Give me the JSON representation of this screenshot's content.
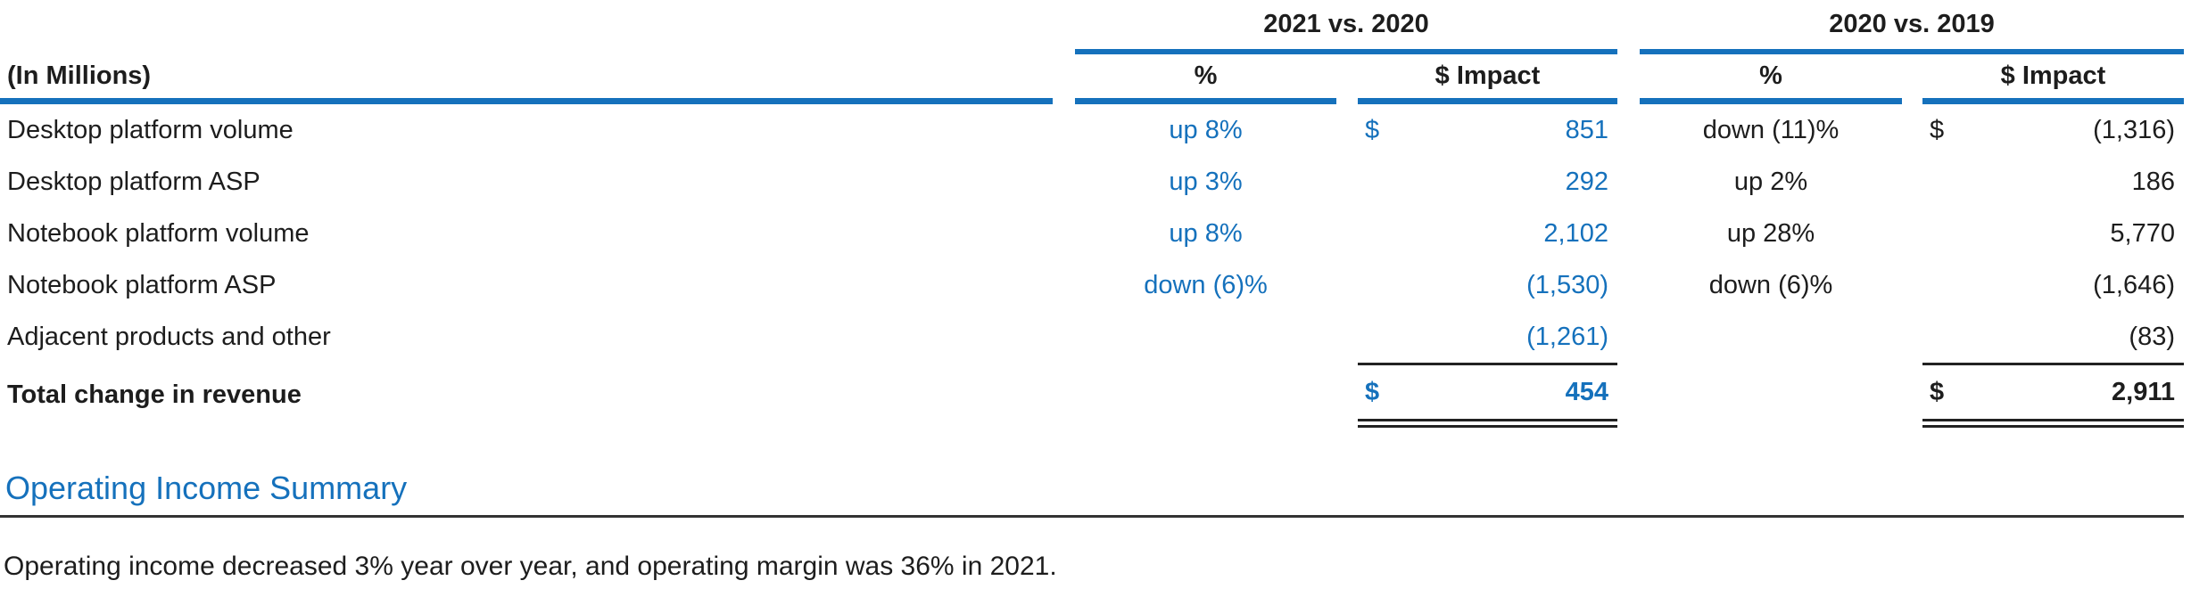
{
  "colors": {
    "accent_blue": "#1571bc",
    "text_dark": "#1d1d1d",
    "rule_dark": "#222222"
  },
  "table": {
    "corner_label": "(In Millions)",
    "groups": [
      {
        "label": "2021 vs. 2020",
        "pct_header": "%",
        "impact_header": "$ Impact"
      },
      {
        "label": "2020 vs. 2019",
        "pct_header": "%",
        "impact_header": "$ Impact"
      }
    ],
    "rows": [
      {
        "label": "Desktop platform volume",
        "g1_pct": "up 8%",
        "g1_cur": "$",
        "g1_val": "851",
        "g2_pct": "down (11)%",
        "g2_cur": "$",
        "g2_val": "(1,316)"
      },
      {
        "label": "Desktop platform ASP",
        "g1_pct": "up 3%",
        "g1_cur": "",
        "g1_val": "292",
        "g2_pct": "up 2%",
        "g2_cur": "",
        "g2_val": "186"
      },
      {
        "label": "Notebook platform volume",
        "g1_pct": "up 8%",
        "g1_cur": "",
        "g1_val": "2,102",
        "g2_pct": "up 28%",
        "g2_cur": "",
        "g2_val": "5,770"
      },
      {
        "label": "Notebook platform ASP",
        "g1_pct": "down (6)%",
        "g1_cur": "",
        "g1_val": "(1,530)",
        "g2_pct": "down (6)%",
        "g2_cur": "",
        "g2_val": "(1,646)"
      },
      {
        "label": "Adjacent products and other",
        "g1_pct": "",
        "g1_cur": "",
        "g1_val": "(1,261)",
        "g2_pct": "",
        "g2_cur": "",
        "g2_val": "(83)"
      }
    ],
    "total_row": {
      "label": "Total change in revenue",
      "g1_cur": "$",
      "g1_val": "454",
      "g2_cur": "$",
      "g2_val": "2,911"
    }
  },
  "section": {
    "heading": "Operating Income Summary",
    "body": "Operating income decreased 3% year over year, and operating margin was 36% in 2021."
  }
}
